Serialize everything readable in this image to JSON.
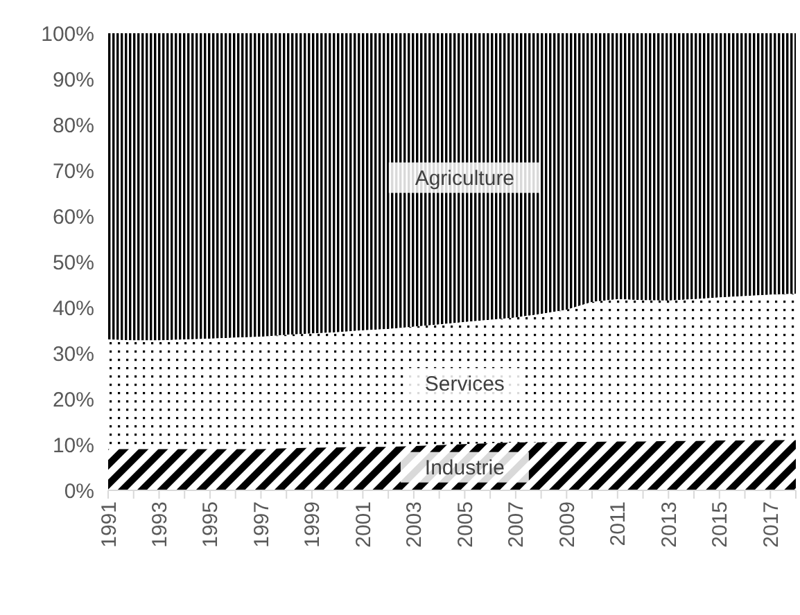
{
  "chart_data": {
    "type": "area",
    "stacked": true,
    "categories": [
      "1991",
      null,
      "1993",
      null,
      "1995",
      null,
      "1997",
      null,
      "1999",
      null,
      "2001",
      null,
      "2003",
      null,
      "2005",
      null,
      "2007",
      null,
      "2009",
      null,
      "2011",
      null,
      "2013",
      null,
      "2015",
      null,
      "2017",
      null
    ],
    "series": [
      {
        "name": "Industrie",
        "color": "#000000",
        "values": [
          9,
          9,
          9,
          9,
          9,
          9,
          9,
          9.2,
          9.3,
          9.4,
          9.5,
          9.5,
          9.7,
          9.9,
          10.1,
          10.3,
          10.5,
          10.5,
          10.6,
          10.6,
          10.7,
          10.7,
          10.8,
          10.8,
          10.9,
          10.9,
          11,
          11
        ]
      },
      {
        "name": "Services",
        "color": "#000000",
        "values": [
          24,
          23.8,
          23.8,
          24,
          24.2,
          24.4,
          24.6,
          24.8,
          25,
          25.2,
          25.5,
          25.8,
          26.1,
          26.4,
          26.7,
          27,
          27.3,
          28.1,
          28.9,
          30.6,
          31.1,
          30.9,
          30.7,
          31,
          31.3,
          31.6,
          31.8,
          32
        ]
      },
      {
        "name": "Agriculture",
        "color": "#000000",
        "values": [
          67,
          67.2,
          67.2,
          67,
          66.8,
          66.6,
          66.4,
          66,
          65.7,
          65.4,
          65,
          64.7,
          64.2,
          63.7,
          63.2,
          62.7,
          62.2,
          61.4,
          60.5,
          58.8,
          58.2,
          58.4,
          58.5,
          58.2,
          57.8,
          57.5,
          57.2,
          57
        ]
      }
    ],
    "ylim": [
      0,
      100
    ],
    "yticks": [
      {
        "value": 0,
        "label": "0%"
      },
      {
        "value": 10,
        "label": "10%"
      },
      {
        "value": 20,
        "label": "20%"
      },
      {
        "value": 30,
        "label": "30%"
      },
      {
        "value": 40,
        "label": "40%"
      },
      {
        "value": 50,
        "label": "50%"
      },
      {
        "value": 60,
        "label": "60%"
      },
      {
        "value": 70,
        "label": "70%"
      },
      {
        "value": 80,
        "label": "80%"
      },
      {
        "value": 90,
        "label": "90%"
      },
      {
        "value": 100,
        "label": "100%"
      }
    ],
    "grid": false,
    "legend": false
  }
}
